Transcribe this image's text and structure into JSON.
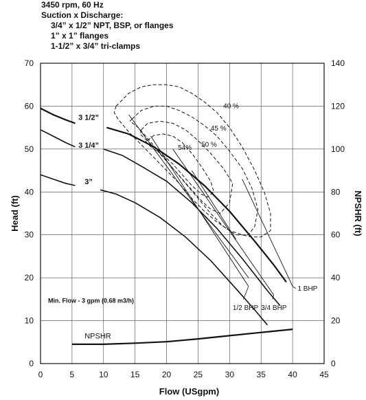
{
  "header": {
    "line1": "3450 rpm, 60 Hz",
    "line2": "Suction x Discharge:",
    "line3": "3/4” x 1/2” NPT, BSP, or flanges",
    "line4": "1” x 1” flanges",
    "line5": "1-1/2” x 3/4” tri-clamps"
  },
  "chart_data": {
    "type": "line",
    "xlabel": "Flow (USgpm)",
    "ylabel": "Head (ft)",
    "y2label": "NPSHR (ft)",
    "xlim": [
      0,
      45
    ],
    "ylim": [
      0,
      70
    ],
    "y2lim": [
      0,
      140
    ],
    "xticks": [
      0,
      5,
      10,
      15,
      20,
      25,
      30,
      35,
      40,
      45
    ],
    "yticks": [
      0,
      10,
      20,
      30,
      40,
      50,
      60,
      70
    ],
    "y2ticks": [
      0,
      20,
      40,
      60,
      80,
      100,
      120,
      140
    ],
    "grid": true,
    "impeller_curves": [
      {
        "name": "3 1/2”",
        "line_style": "solid-heavy",
        "x": [
          0,
          2,
          4,
          5.5
        ],
        "y": [
          59.5,
          58,
          56.8,
          56
        ]
      },
      {
        "name": "",
        "line_style": "solid-heavy",
        "x": [
          10.5,
          14,
          18,
          22,
          26,
          30,
          34,
          37,
          39
        ],
        "y": [
          55,
          53.5,
          50.5,
          46.5,
          41.5,
          35.5,
          28.5,
          23,
          19
        ]
      },
      {
        "name": "3 1/4”",
        "line_style": "solid",
        "x": [
          0,
          2,
          4,
          5.5
        ],
        "y": [
          54.5,
          53,
          51.5,
          50.5
        ]
      },
      {
        "name": "",
        "line_style": "solid",
        "x": [
          10,
          13,
          16,
          20,
          24,
          28,
          32,
          36,
          38
        ],
        "y": [
          50,
          48.5,
          46,
          42.5,
          37.5,
          31.5,
          24.5,
          17,
          13.5
        ]
      },
      {
        "name": "3”",
        "line_style": "solid",
        "x": [
          0,
          2,
          4,
          5.5
        ],
        "y": [
          44,
          43,
          42,
          41.5
        ]
      },
      {
        "name": "",
        "line_style": "solid",
        "x": [
          9.5,
          12,
          15,
          19,
          23,
          27,
          31,
          34,
          36
        ],
        "y": [
          40.5,
          39.5,
          37.5,
          34,
          29.5,
          24,
          17.5,
          12.5,
          9
        ]
      }
    ],
    "efficiency_curves": [
      {
        "name": "40 %",
        "line_style": "dashed",
        "x": [
          12,
          14,
          16,
          18,
          20,
          22,
          24,
          26,
          28,
          30,
          32,
          34,
          35.5,
          36.5,
          36.5,
          35,
          33.5,
          32,
          30,
          28,
          26,
          24,
          22,
          20,
          18,
          16,
          14,
          12.3,
          11.7,
          12
        ],
        "y": [
          60,
          63,
          64.5,
          65,
          65,
          64.5,
          63,
          61,
          58.5,
          55,
          50.5,
          45,
          40,
          35,
          31,
          29.5,
          29.5,
          30,
          31,
          33,
          35.5,
          38.5,
          42,
          45,
          48,
          51,
          54,
          57,
          58.5,
          60
        ]
      },
      {
        "name": "45 %",
        "line_style": "dashed",
        "x": [
          14.5,
          16,
          18,
          20,
          22,
          24,
          26,
          28,
          30,
          32,
          33.5,
          34.5,
          34,
          33,
          31,
          29,
          27,
          25,
          23,
          21,
          19,
          17,
          15.5,
          14.2,
          14.5
        ],
        "y": [
          57,
          59,
          60,
          60,
          59,
          57.5,
          55.5,
          53,
          49.5,
          45.5,
          41,
          36,
          32,
          30,
          30,
          32,
          35,
          38.5,
          42,
          45.5,
          49,
          52.5,
          55,
          56.5,
          57
        ]
      },
      {
        "name": "50 %",
        "line_style": "dashed",
        "x": [
          16,
          17,
          19,
          21,
          23,
          25,
          27,
          29,
          30.5,
          30,
          28.5,
          27,
          25.5,
          24,
          22.5,
          21,
          19.5,
          18,
          16.5,
          15.8,
          16
        ],
        "y": [
          54.5,
          56,
          56.5,
          56,
          54.5,
          52,
          49,
          45.5,
          42,
          37.5,
          35,
          36,
          38,
          40.5,
          43,
          45.5,
          48,
          50.5,
          52.5,
          53.5,
          54.5
        ]
      },
      {
        "name": "54%",
        "line_style": "dashed",
        "x": [
          17,
          18,
          19.5,
          21,
          22.5,
          24,
          25.5,
          27,
          27.5,
          26.5,
          25.5,
          24,
          22.5,
          21,
          19.5,
          18,
          17,
          16.7,
          17
        ],
        "y": [
          52,
          53.2,
          53.5,
          53,
          51.5,
          49,
          46,
          42.5,
          40,
          38.8,
          39.5,
          41.5,
          44,
          46.5,
          48.5,
          50,
          51.2,
          51.8,
          52
        ]
      }
    ],
    "bhp_lines": [
      {
        "name": "1/2 BHP",
        "x": [
          17.5,
          33
        ],
        "y": [
          53,
          18
        ]
      },
      {
        "name": "3/4 BHP",
        "x": [
          21,
          37
        ],
        "y": [
          50,
          16
        ]
      },
      {
        "name": "1 BHP",
        "x": [
          32,
          40
        ],
        "y": [
          43,
          18
        ]
      }
    ],
    "extra_lines": [
      {
        "x": [
          14,
          33
        ],
        "y": [
          58,
          20
        ]
      },
      {
        "x": [
          24,
          31
        ],
        "y": [
          45,
          29
        ]
      }
    ],
    "npshr": {
      "name": "NPSHR",
      "x": [
        5,
        10,
        15,
        20,
        25,
        30,
        35,
        40
      ],
      "y": [
        9,
        9,
        9.5,
        10.2,
        11.5,
        13,
        14.5,
        16
      ]
    },
    "annotations": {
      "min_flow": "Min. Flow - 3 gpm (0.68 m3/h)"
    }
  }
}
